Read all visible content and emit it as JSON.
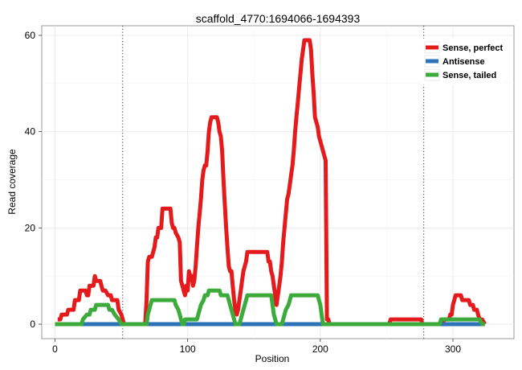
{
  "chart_data": {
    "type": "line",
    "title": "scaffold_4770:1694066-1694393",
    "xlabel": "Position",
    "ylabel": "Read coverage",
    "xlim": [
      -10,
      346
    ],
    "ylim": [
      -3,
      62
    ],
    "xticks": [
      0,
      100,
      200,
      300
    ],
    "yticks": [
      0,
      20,
      40,
      60
    ],
    "grid": true,
    "vlines": [
      51,
      278
    ],
    "legend_position": "top-right",
    "series": [
      {
        "name": "Sense, perfect",
        "color": "#e41a1c",
        "points": [
          [
            2,
            1
          ],
          [
            4,
            1
          ],
          [
            5,
            2
          ],
          [
            9,
            2
          ],
          [
            10,
            3
          ],
          [
            14,
            3
          ],
          [
            15,
            5
          ],
          [
            18,
            5
          ],
          [
            19,
            7
          ],
          [
            23,
            7
          ],
          [
            24,
            6
          ],
          [
            25,
            6
          ],
          [
            26,
            8
          ],
          [
            29,
            8
          ],
          [
            30,
            10
          ],
          [
            31,
            9
          ],
          [
            34,
            9
          ],
          [
            35,
            8
          ],
          [
            36,
            7
          ],
          [
            38,
            7
          ],
          [
            40,
            6
          ],
          [
            42,
            6
          ],
          [
            43,
            5
          ],
          [
            47,
            5
          ],
          [
            48,
            3
          ],
          [
            50,
            2
          ],
          [
            51,
            1
          ],
          [
            52,
            0
          ],
          [
            68,
            0
          ],
          [
            69,
            5
          ],
          [
            70,
            13
          ],
          [
            71,
            14
          ],
          [
            73,
            14
          ],
          [
            75,
            16
          ],
          [
            76,
            18
          ],
          [
            77,
            18
          ],
          [
            78,
            20
          ],
          [
            80,
            20
          ],
          [
            81,
            24
          ],
          [
            87,
            24
          ],
          [
            88,
            21
          ],
          [
            89,
            20
          ],
          [
            90,
            20
          ],
          [
            91,
            19
          ],
          [
            93,
            18
          ],
          [
            94,
            17
          ],
          [
            95,
            9
          ],
          [
            96,
            8
          ],
          [
            97,
            7
          ],
          [
            98,
            6
          ],
          [
            99,
            8
          ],
          [
            100,
            7
          ],
          [
            101,
            11
          ],
          [
            102,
            10
          ],
          [
            103,
            10
          ],
          [
            104,
            8
          ],
          [
            105,
            9
          ],
          [
            106,
            12
          ],
          [
            107,
            16
          ],
          [
            108,
            20
          ],
          [
            109,
            23
          ],
          [
            110,
            26
          ],
          [
            111,
            30
          ],
          [
            112,
            32
          ],
          [
            113,
            33
          ],
          [
            114,
            33
          ],
          [
            115,
            36
          ],
          [
            116,
            40
          ],
          [
            117,
            42
          ],
          [
            118,
            43
          ],
          [
            122,
            43
          ],
          [
            123,
            42
          ],
          [
            124,
            40
          ],
          [
            125,
            39
          ],
          [
            126,
            36
          ],
          [
            127,
            30
          ],
          [
            128,
            25
          ],
          [
            129,
            20
          ],
          [
            130,
            16
          ],
          [
            131,
            12
          ],
          [
            132,
            11
          ],
          [
            133,
            11
          ],
          [
            134,
            8
          ],
          [
            135,
            5
          ],
          [
            136,
            3
          ],
          [
            137,
            2
          ],
          [
            138,
            3
          ],
          [
            139,
            5
          ],
          [
            140,
            7
          ],
          [
            141,
            9
          ],
          [
            142,
            11
          ],
          [
            143,
            12
          ],
          [
            144,
            13
          ],
          [
            145,
            15
          ],
          [
            147,
            15
          ],
          [
            148,
            15
          ],
          [
            150,
            15
          ],
          [
            152,
            15
          ],
          [
            154,
            15
          ],
          [
            156,
            15
          ],
          [
            160,
            15
          ],
          [
            161,
            13
          ],
          [
            162,
            13
          ],
          [
            163,
            11
          ],
          [
            164,
            10
          ],
          [
            165,
            8
          ],
          [
            166,
            6
          ],
          [
            167,
            4
          ],
          [
            168,
            6
          ],
          [
            169,
            8
          ],
          [
            170,
            10
          ],
          [
            171,
            13
          ],
          [
            172,
            17
          ],
          [
            173,
            20
          ],
          [
            174,
            23
          ],
          [
            175,
            26
          ],
          [
            176,
            27
          ],
          [
            177,
            29
          ],
          [
            178,
            31
          ],
          [
            179,
            33
          ],
          [
            180,
            36
          ],
          [
            181,
            40
          ],
          [
            182,
            43
          ],
          [
            183,
            46
          ],
          [
            184,
            49
          ],
          [
            185,
            52
          ],
          [
            186,
            55
          ],
          [
            187,
            57
          ],
          [
            188,
            59
          ],
          [
            192,
            59
          ],
          [
            193,
            57
          ],
          [
            194,
            52
          ],
          [
            195,
            48
          ],
          [
            196,
            43
          ],
          [
            197,
            42
          ],
          [
            198,
            41
          ],
          [
            199,
            39
          ],
          [
            200,
            38
          ],
          [
            201,
            37
          ],
          [
            202,
            36
          ],
          [
            203,
            35
          ],
          [
            204,
            34
          ],
          [
            205,
            1
          ],
          [
            206,
            1
          ],
          [
            207,
            0
          ],
          [
            252,
            0
          ],
          [
            253,
            1
          ],
          [
            258,
            1
          ],
          [
            262,
            1
          ],
          [
            265,
            1
          ],
          [
            270,
            1
          ],
          [
            276,
            1
          ],
          [
            277,
            0
          ],
          [
            291,
            0
          ],
          [
            294,
            1
          ],
          [
            297,
            1
          ],
          [
            298,
            2
          ],
          [
            299,
            2
          ],
          [
            300,
            4
          ],
          [
            301,
            5
          ],
          [
            302,
            6
          ],
          [
            306,
            6
          ],
          [
            307,
            5
          ],
          [
            312,
            5
          ],
          [
            313,
            4
          ],
          [
            315,
            4
          ],
          [
            316,
            3
          ],
          [
            318,
            3
          ],
          [
            319,
            2
          ],
          [
            320,
            1
          ],
          [
            322,
            1
          ],
          [
            324,
            0
          ]
        ]
      },
      {
        "name": "Antisense",
        "color": "#2c72b5",
        "points": [
          [
            0,
            0
          ],
          [
            324,
            0
          ]
        ]
      },
      {
        "name": "Sense, tailed",
        "color": "#3cab3c",
        "points": [
          [
            0,
            0
          ],
          [
            20,
            0
          ],
          [
            21,
            1
          ],
          [
            24,
            2
          ],
          [
            26,
            2
          ],
          [
            27,
            3
          ],
          [
            30,
            3
          ],
          [
            31,
            4
          ],
          [
            34,
            4
          ],
          [
            36,
            4
          ],
          [
            40,
            4
          ],
          [
            41,
            3
          ],
          [
            43,
            3
          ],
          [
            45,
            2
          ],
          [
            48,
            1
          ],
          [
            50,
            0
          ],
          [
            69,
            0
          ],
          [
            70,
            2
          ],
          [
            72,
            4
          ],
          [
            73,
            5
          ],
          [
            84,
            5
          ],
          [
            90,
            5
          ],
          [
            91,
            4
          ],
          [
            93,
            3
          ],
          [
            94,
            2
          ],
          [
            95,
            1
          ],
          [
            96,
            0
          ],
          [
            97,
            0
          ],
          [
            98,
            1
          ],
          [
            107,
            1
          ],
          [
            108,
            2
          ],
          [
            110,
            4
          ],
          [
            112,
            5
          ],
          [
            113,
            6
          ],
          [
            115,
            6
          ],
          [
            116,
            7
          ],
          [
            124,
            7
          ],
          [
            125,
            6
          ],
          [
            130,
            6
          ],
          [
            131,
            5
          ],
          [
            132,
            4
          ],
          [
            133,
            3
          ],
          [
            134,
            2
          ],
          [
            135,
            1
          ],
          [
            136,
            0
          ],
          [
            137,
            0
          ],
          [
            139,
            0
          ],
          [
            140,
            1
          ],
          [
            141,
            2
          ],
          [
            142,
            3
          ],
          [
            143,
            4
          ],
          [
            144,
            5
          ],
          [
            145,
            6
          ],
          [
            150,
            6
          ],
          [
            160,
            6
          ],
          [
            163,
            6
          ],
          [
            164,
            4
          ],
          [
            165,
            2
          ],
          [
            166,
            1
          ],
          [
            167,
            0
          ],
          [
            171,
            0
          ],
          [
            172,
            1
          ],
          [
            173,
            2
          ],
          [
            174,
            3
          ],
          [
            176,
            4
          ],
          [
            177,
            5
          ],
          [
            178,
            6
          ],
          [
            180,
            6
          ],
          [
            190,
            6
          ],
          [
            198,
            6
          ],
          [
            199,
            5
          ],
          [
            200,
            4
          ],
          [
            201,
            2
          ],
          [
            202,
            0
          ],
          [
            276,
            0
          ],
          [
            277,
            0
          ],
          [
            285,
            0
          ],
          [
            290,
            0
          ],
          [
            291,
            1
          ],
          [
            300,
            1
          ],
          [
            310,
            1
          ],
          [
            318,
            1
          ],
          [
            320,
            1
          ],
          [
            322,
            0
          ],
          [
            324,
            0
          ]
        ]
      }
    ]
  }
}
